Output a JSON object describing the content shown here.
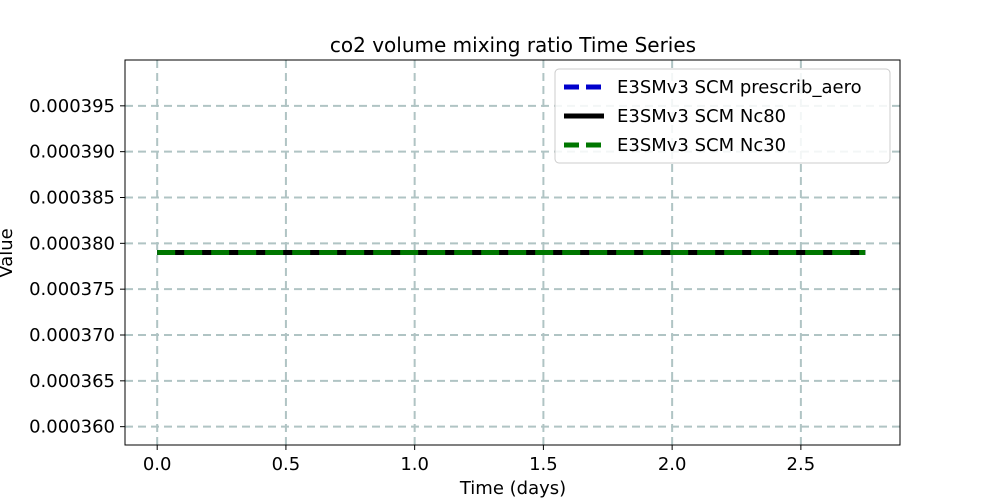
{
  "chart_data": {
    "type": "line",
    "title": "co2 volume mixing ratio Time Series",
    "xlabel": "Time (days)",
    "ylabel": "Value",
    "xlim": [
      -0.125,
      2.885
    ],
    "ylim": [
      0.000358,
      0.0004
    ],
    "xticks": [
      0.0,
      0.5,
      1.0,
      1.5,
      2.0,
      2.5
    ],
    "xtick_labels": [
      "0.0",
      "0.5",
      "1.0",
      "1.5",
      "2.0",
      "2.5"
    ],
    "yticks": [
      0.00036,
      0.000365,
      0.00037,
      0.000375,
      0.00038,
      0.000385,
      0.00039,
      0.000395
    ],
    "ytick_labels": [
      "0.000360",
      "0.000365",
      "0.000370",
      "0.000375",
      "0.000380",
      "0.000385",
      "0.000390",
      "0.000395"
    ],
    "grid": true,
    "legend_position": "top-right",
    "series": [
      {
        "name": "E3SMv3 SCM prescrib_aero",
        "color": "#0000cc",
        "style": "dashed",
        "x": [
          0.0,
          2.75
        ],
        "values": [
          0.000379,
          0.000379
        ]
      },
      {
        "name": "E3SMv3 SCM Nc80",
        "color": "#000000",
        "style": "solid",
        "x": [
          0.0,
          2.75
        ],
        "values": [
          0.000379,
          0.000379
        ]
      },
      {
        "name": "E3SMv3 SCM Nc30",
        "color": "#007700",
        "style": "dashed",
        "x": [
          0.0,
          2.75
        ],
        "values": [
          0.000379,
          0.000379
        ]
      }
    ]
  }
}
